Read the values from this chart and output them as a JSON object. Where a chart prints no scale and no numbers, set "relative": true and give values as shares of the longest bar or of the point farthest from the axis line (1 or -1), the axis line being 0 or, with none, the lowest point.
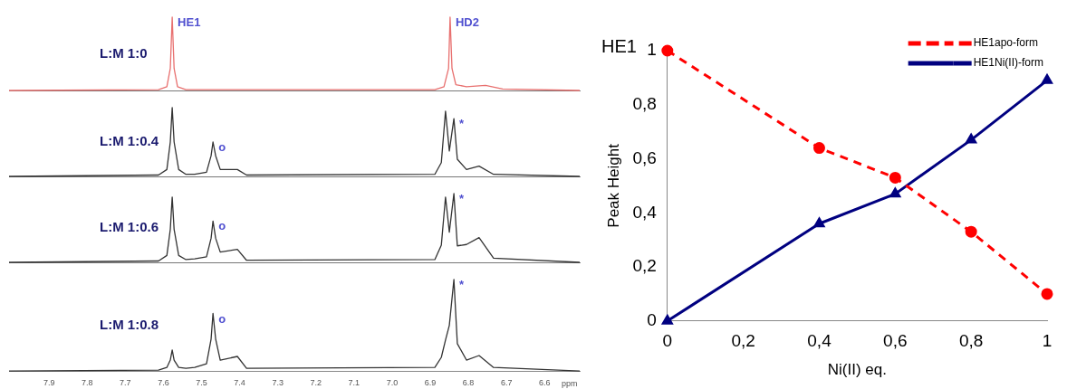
{
  "chart_data": [
    {
      "type": "line",
      "relative": true,
      "xlim": [
        8.005,
        6.508
      ],
      "tick_labels": false,
      "marker": "none",
      "line_style": "solid",
      "legend": false,
      "grid": false,
      "annotations": [
        "L:M 1:0",
        {
          "text": "HE1",
          "x": 7.577,
          "y": 1
        },
        {
          "text": "HD2",
          "x": 6.848,
          "y": 1
        }
      ],
      "series": [
        {
          "color": "#e8706f",
          "x": [
            8.005,
            7.613,
            7.591,
            7.582,
            7.577,
            7.572,
            7.563,
            7.541,
            6.888,
            6.864,
            6.852,
            6.848,
            6.843,
            6.833,
            6.805,
            6.755,
            6.71,
            6.508
          ],
          "values": [
            0,
            0.01,
            0.05,
            0.3,
            1,
            0.3,
            0.05,
            0.01,
            0.01,
            0.05,
            0.3,
            1,
            0.3,
            0.08,
            0.05,
            0.07,
            0.02,
            0
          ]
        }
      ]
    },
    {
      "type": "line",
      "relative": true,
      "xlim": [
        8.005,
        6.508
      ],
      "tick_labels": false,
      "marker": "none",
      "line_style": "solid",
      "legend": false,
      "grid": false,
      "annotations": [
        "L:M 1:0.4",
        {
          "text": "o",
          "x": 7.47,
          "y": 0.5
        },
        {
          "text": "*",
          "x": 6.838,
          "y": 0.84
        }
      ],
      "series": [
        {
          "color": "#333333",
          "x": [
            8.005,
            7.613,
            7.591,
            7.582,
            7.577,
            7.572,
            7.56,
            7.541,
            7.518,
            7.487,
            7.475,
            7.47,
            7.463,
            7.451,
            7.406,
            7.382,
            6.888,
            6.871,
            6.86,
            6.85,
            6.838,
            6.829,
            6.805,
            6.772,
            6.734,
            6.508
          ],
          "values": [
            0,
            0.02,
            0.1,
            0.5,
            1,
            0.5,
            0.1,
            0.03,
            0.03,
            0.06,
            0.3,
            0.5,
            0.3,
            0.1,
            0.1,
            0.02,
            0.03,
            0.2,
            0.95,
            0.37,
            0.84,
            0.25,
            0.1,
            0.15,
            0.03,
            0
          ]
        }
      ]
    },
    {
      "type": "line",
      "relative": true,
      "xlim": [
        8.005,
        6.508
      ],
      "tick_labels": false,
      "marker": "none",
      "line_style": "solid",
      "legend": false,
      "grid": false,
      "annotations": [
        "L:M 1:0.6",
        {
          "text": "o",
          "x": 7.47,
          "y": 0.6
        },
        {
          "text": "*",
          "x": 6.838,
          "y": 1
        }
      ],
      "series": [
        {
          "color": "#333333",
          "x": [
            8.005,
            7.613,
            7.591,
            7.582,
            7.577,
            7.572,
            7.56,
            7.541,
            7.518,
            7.487,
            7.475,
            7.47,
            7.463,
            7.451,
            7.406,
            7.382,
            6.888,
            6.871,
            6.86,
            6.85,
            6.838,
            6.829,
            6.805,
            6.772,
            6.734,
            6.508
          ],
          "values": [
            0,
            0.02,
            0.1,
            0.48,
            0.95,
            0.48,
            0.1,
            0.04,
            0.05,
            0.08,
            0.35,
            0.6,
            0.35,
            0.15,
            0.19,
            0.03,
            0.04,
            0.25,
            0.95,
            0.44,
            1,
            0.24,
            0.26,
            0.36,
            0.06,
            0
          ]
        }
      ]
    },
    {
      "type": "line",
      "relative": true,
      "xlim": [
        8.005,
        6.508
      ],
      "xticks": [
        7.9,
        7.8,
        7.7,
        7.6,
        7.5,
        7.4,
        7.3,
        7.2,
        7.1,
        {
          "value": 7,
          "label": "7.0"
        },
        6.9,
        6.8,
        6.7,
        6.6
      ],
      "xlabel": "ppm",
      "tick_labels": "x",
      "marker": "none",
      "line_style": "solid",
      "legend": false,
      "grid": false,
      "annotations": [
        "L:M 1:0.8",
        {
          "text": "o",
          "x": 7.47,
          "y": 0.63
        },
        {
          "text": "*",
          "x": 6.838,
          "y": 1
        }
      ],
      "series": [
        {
          "color": "#333333",
          "x": [
            8.005,
            7.613,
            7.591,
            7.582,
            7.577,
            7.572,
            7.56,
            7.541,
            7.518,
            7.487,
            7.475,
            7.47,
            7.463,
            7.451,
            7.406,
            7.382,
            6.888,
            6.871,
            6.86,
            6.85,
            6.838,
            6.829,
            6.805,
            6.772,
            6.734,
            6.508
          ],
          "values": [
            0,
            0.01,
            0.04,
            0.12,
            0.23,
            0.12,
            0.04,
            0.03,
            0.04,
            0.08,
            0.35,
            0.63,
            0.35,
            0.12,
            0.16,
            0.03,
            0.04,
            0.15,
            0.34,
            0.5,
            1,
            0.3,
            0.12,
            0.17,
            0.04,
            0
          ]
        }
      ]
    },
    {
      "type": "line",
      "title": "HE1",
      "xlabel": "Ni(II) eq.",
      "ylabel": "Peak Height",
      "legend": "top right",
      "grid": false,
      "xlim": [
        0,
        1
      ],
      "xticks": [
        0,
        {
          "value": 0.2,
          "label": "0,2"
        },
        {
          "value": 0.4,
          "label": "0,4"
        },
        {
          "value": 0.6,
          "label": "0,6"
        },
        {
          "value": 0.8,
          "label": "0,8"
        },
        1
      ],
      "ylim": [
        0,
        1
      ],
      "yticks": [
        0,
        {
          "value": 0.2,
          "label": "0,2"
        },
        {
          "value": 0.4,
          "label": "0,4"
        },
        {
          "value": 0.6,
          "label": "0,6"
        },
        {
          "value": 0.8,
          "label": "0,8"
        },
        1
      ],
      "x": [
        0,
        0.4,
        0.6,
        0.8,
        1
      ],
      "series": [
        {
          "name": "HE1apo-form",
          "color": "#ff0000",
          "marker": "circle",
          "line_style": "dashed",
          "values": [
            1,
            0.64,
            0.53,
            0.33,
            0.1
          ]
        },
        {
          "name": "HE1Ni(II)-form",
          "color": "#000080",
          "marker": "triangle",
          "line_style": "solid",
          "values": [
            0,
            0.36,
            0.47,
            0.67,
            0.89
          ]
        }
      ]
    }
  ]
}
